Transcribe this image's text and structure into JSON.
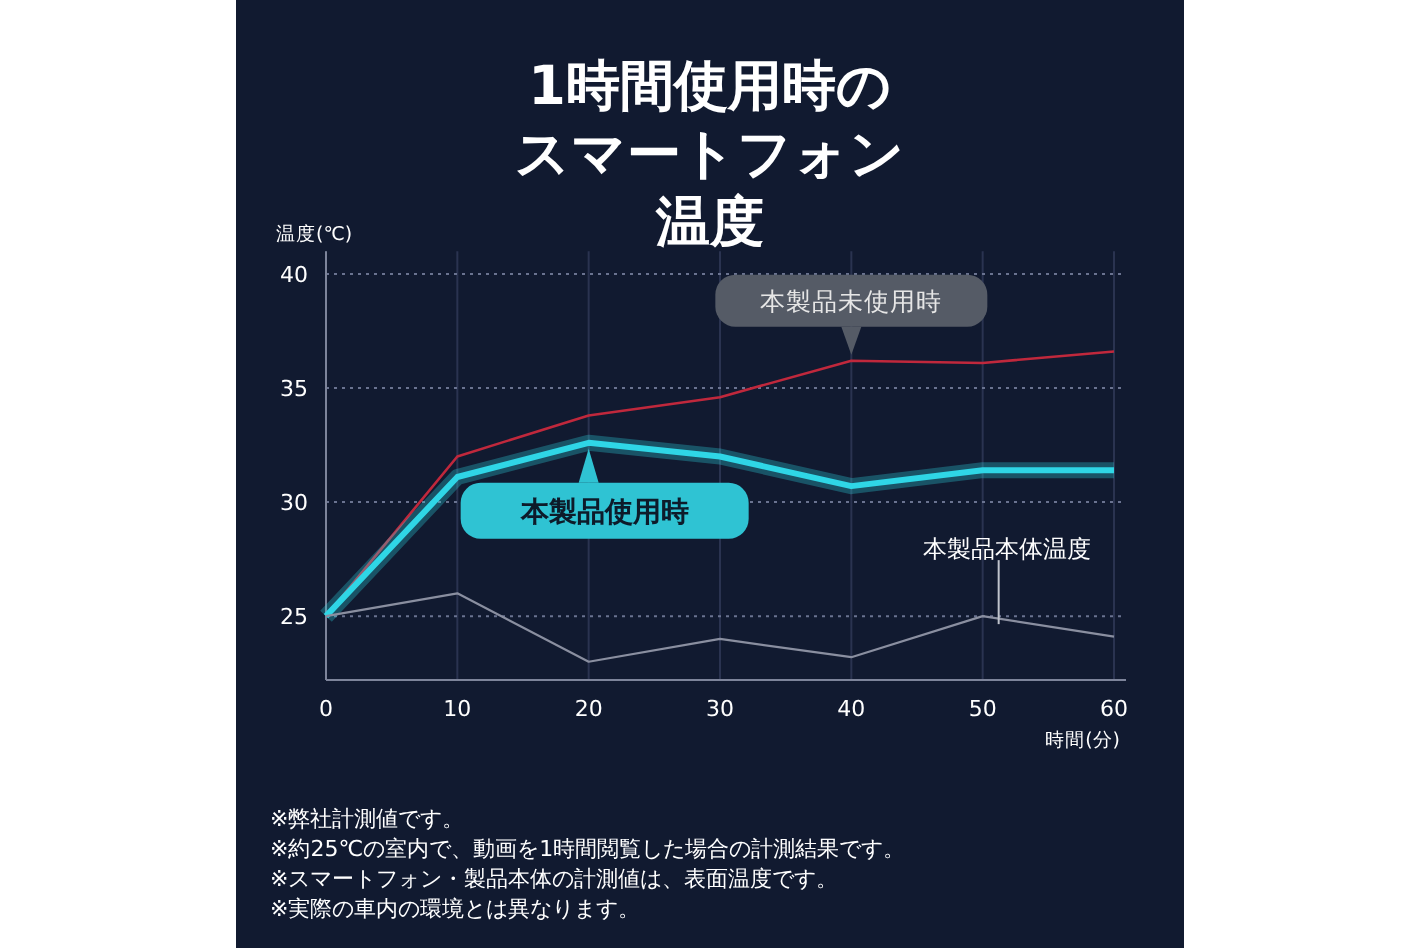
{
  "chart_data": {
    "type": "line",
    "title": "1時間使用時のスマートフォン温度",
    "xlabel": "時間(分)",
    "ylabel": "温度(℃)",
    "x": [
      0,
      10,
      20,
      30,
      40,
      50,
      60
    ],
    "series": [
      {
        "name": "本製品未使用時",
        "color": "#c0283c",
        "values": [
          25,
          32.0,
          33.8,
          34.6,
          36.2,
          36.1,
          36.6
        ]
      },
      {
        "name": "本製品使用時",
        "color": "#2fd6e6",
        "values": [
          25,
          31.1,
          32.6,
          32.0,
          30.7,
          31.4,
          31.4
        ]
      },
      {
        "name": "本製品本体温度",
        "color": "#8a8fa0",
        "values": [
          25,
          26.0,
          23.0,
          24.0,
          23.2,
          25.0,
          24.1
        ]
      }
    ],
    "xlim": [
      0,
      60
    ],
    "xticks": [
      0,
      10,
      20,
      30,
      40,
      50,
      60
    ],
    "ylim": [
      22.2,
      41
    ],
    "yticks": [
      25,
      30,
      35,
      40
    ],
    "grid": true,
    "annotations": [
      "※弊社計測値です。",
      "※約25℃の室内で、動画を1時間閲覧した場合の計測結果です。",
      "※スマートフォン・製品本体の計測値は、表面温度です。",
      "※実際の車内の環境とは異なります。"
    ]
  }
}
